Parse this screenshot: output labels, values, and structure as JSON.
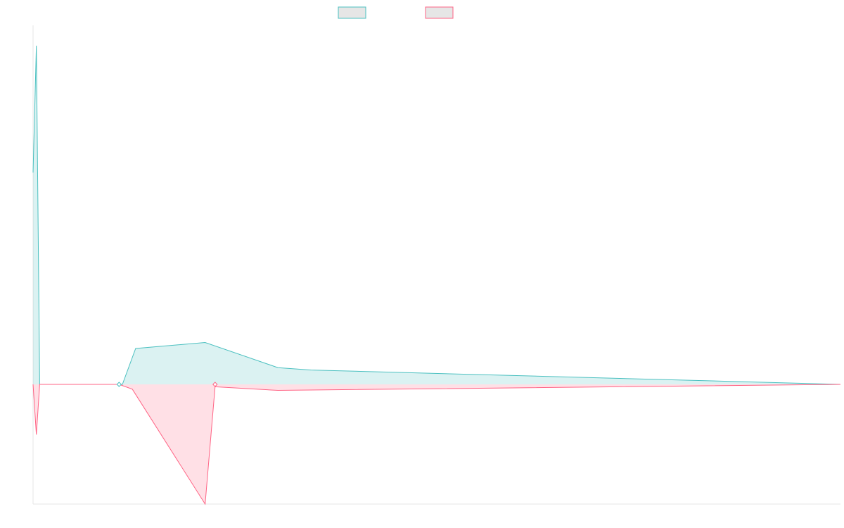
{
  "chart_data": {
    "type": "line",
    "title": "",
    "xlabel": "",
    "ylabel": "",
    "grid": false,
    "legend": {
      "placement": "top-center",
      "entries": [
        {
          "name": "",
          "color": "#4bc0c0"
        },
        {
          "name": "",
          "color": "#ff6384"
        }
      ]
    },
    "x_count": 245,
    "ylim": [
      -1,
      3
    ],
    "series": [
      {
        "name": "",
        "color": "#4bc0c0",
        "fill": "rgba(75,192,192,0.2)",
        "points": [
          [
            0,
            1.77
          ],
          [
            1,
            2.83
          ],
          [
            2,
            0
          ],
          [
            27,
            0
          ],
          [
            31,
            0.3
          ],
          [
            52,
            0.35
          ],
          [
            74,
            0.14
          ],
          [
            84,
            0.12
          ],
          [
            244,
            0
          ]
        ]
      },
      {
        "name": "",
        "color": "#ff6384",
        "fill": "rgba(255,99,132,0.2)",
        "points": [
          [
            0,
            0
          ],
          [
            1,
            -0.42
          ],
          [
            2,
            0
          ],
          [
            26,
            0
          ],
          [
            30,
            -0.04
          ],
          [
            52,
            -1.0
          ],
          [
            55,
            -0.02
          ],
          [
            74,
            -0.05
          ],
          [
            244,
            0
          ]
        ]
      }
    ]
  }
}
